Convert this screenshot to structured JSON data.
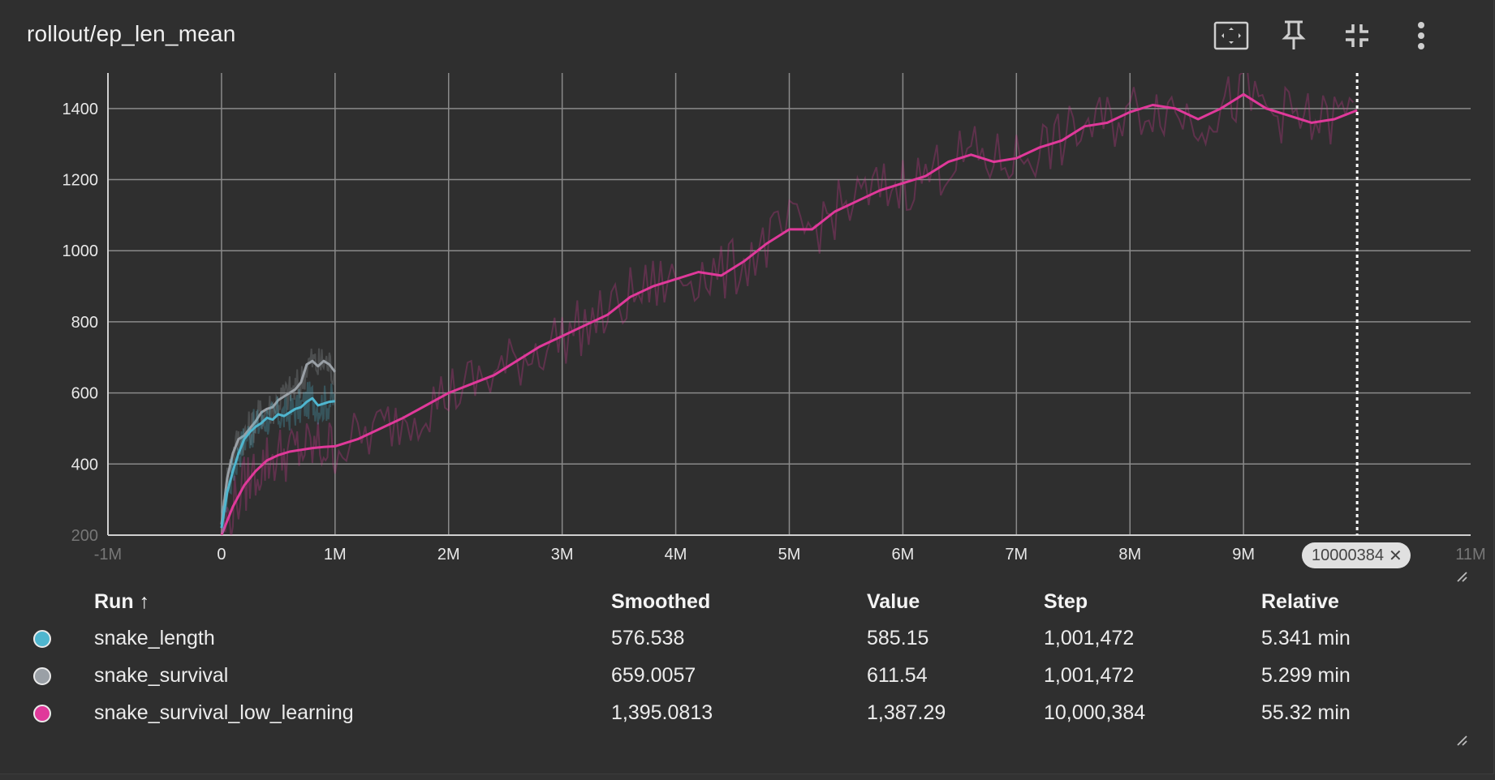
{
  "card": {
    "title": "rollout/ep_len_mean"
  },
  "toolbar": [
    {
      "name": "fit-domain-button",
      "icon": "fit-to-screen-icon"
    },
    {
      "name": "pin-button",
      "icon": "pin-icon"
    },
    {
      "name": "collapse-button",
      "icon": "collapse-icon"
    },
    {
      "name": "more-menu-button",
      "icon": "more-vert-icon"
    }
  ],
  "step_badge": {
    "value": "10000384",
    "close": "✕"
  },
  "table": {
    "headers": {
      "run": "Run",
      "sort_arrow": "↑",
      "smoothed": "Smoothed",
      "value": "Value",
      "step": "Step",
      "relative": "Relative"
    },
    "rows": [
      {
        "color": "#4fb6cf",
        "run": "snake_length",
        "smoothed": "576.538",
        "value": "585.15",
        "step": "1,001,472",
        "relative": "5.341 min"
      },
      {
        "color": "#9aa0a6",
        "run": "snake_survival",
        "smoothed": "659.0057",
        "value": "611.54",
        "step": "1,001,472",
        "relative": "5.299 min"
      },
      {
        "color": "#e0399a",
        "run": "snake_survival_low_learning",
        "smoothed": "1,395.0813",
        "value": "1,387.29",
        "step": "10,000,384",
        "relative": "55.32 min"
      }
    ]
  },
  "chart_data": {
    "type": "line",
    "title": "rollout/ep_len_mean",
    "xlabel": "",
    "ylabel": "",
    "xlim": [
      -1000000,
      11000000
    ],
    "ylim": [
      200,
      1500
    ],
    "x_ticks": [
      "-1M",
      "0",
      "1M",
      "2M",
      "3M",
      "4M",
      "5M",
      "6M",
      "7M",
      "8M",
      "9M",
      "10M",
      "11M"
    ],
    "y_ticks": [
      200,
      400,
      600,
      800,
      1000,
      1200,
      1400
    ],
    "grid": true,
    "cursor_step": 10000384,
    "series": [
      {
        "name": "snake_length",
        "color": "#4fb6cf",
        "x_m": [
          0,
          0.05,
          0.1,
          0.15,
          0.2,
          0.25,
          0.3,
          0.35,
          0.4,
          0.45,
          0.5,
          0.55,
          0.6,
          0.65,
          0.7,
          0.75,
          0.8,
          0.85,
          0.9,
          0.95,
          1.0
        ],
        "smoothed": [
          220,
          320,
          380,
          430,
          470,
          490,
          505,
          515,
          530,
          525,
          540,
          535,
          545,
          555,
          560,
          575,
          585,
          565,
          570,
          575,
          577
        ]
      },
      {
        "name": "snake_survival",
        "color": "#9aa0a6",
        "x_m": [
          0,
          0.05,
          0.1,
          0.15,
          0.2,
          0.25,
          0.3,
          0.35,
          0.4,
          0.45,
          0.5,
          0.55,
          0.6,
          0.65,
          0.7,
          0.75,
          0.8,
          0.85,
          0.9,
          0.95,
          1.0
        ],
        "smoothed": [
          230,
          360,
          430,
          470,
          480,
          500,
          520,
          545,
          555,
          560,
          580,
          590,
          600,
          610,
          630,
          680,
          690,
          675,
          690,
          680,
          659
        ]
      },
      {
        "name": "snake_survival_low_learning",
        "color": "#e0399a",
        "x_m": [
          0,
          0.1,
          0.2,
          0.3,
          0.4,
          0.5,
          0.6,
          0.7,
          0.8,
          0.9,
          1.0,
          1.2,
          1.4,
          1.6,
          1.8,
          2.0,
          2.2,
          2.4,
          2.6,
          2.8,
          3.0,
          3.2,
          3.4,
          3.6,
          3.8,
          4.0,
          4.2,
          4.4,
          4.6,
          4.8,
          5.0,
          5.2,
          5.4,
          5.6,
          5.8,
          6.0,
          6.2,
          6.4,
          6.6,
          6.8,
          7.0,
          7.2,
          7.4,
          7.6,
          7.8,
          8.0,
          8.2,
          8.4,
          8.6,
          8.8,
          9.0,
          9.2,
          9.4,
          9.6,
          9.8,
          10.0
        ],
        "smoothed": [
          200,
          280,
          340,
          380,
          410,
          425,
          435,
          440,
          445,
          448,
          450,
          470,
          500,
          530,
          565,
          600,
          625,
          650,
          690,
          730,
          760,
          790,
          820,
          870,
          900,
          920,
          940,
          930,
          970,
          1020,
          1060,
          1060,
          1110,
          1140,
          1170,
          1190,
          1210,
          1250,
          1270,
          1250,
          1260,
          1290,
          1310,
          1350,
          1360,
          1390,
          1410,
          1400,
          1370,
          1400,
          1440,
          1400,
          1380,
          1360,
          1370,
          1395
        ]
      }
    ]
  }
}
